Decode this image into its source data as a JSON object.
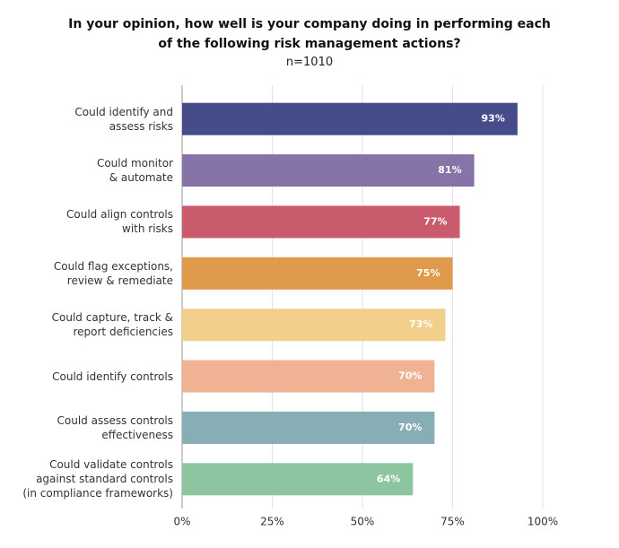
{
  "chart_data": {
    "type": "barh",
    "title": "In your opinion, how well is your company doing in performing each\nof the following risk management actions?",
    "subtitle": "n=1010",
    "categories": [
      "Could identify and\nassess risks",
      "Could monitor\n& automate",
      "Could align controls\nwith risks",
      "Could flag exceptions,\nreview & remediate",
      "Could capture, track &\nreport deficiencies",
      "Could identify controls",
      "Could assess controls\neffectiveness",
      "Could validate controls\nagainst standard controls\n(in compliance frameworks)"
    ],
    "values": [
      93,
      81,
      77,
      75,
      73,
      70,
      70,
      64
    ],
    "value_labels": [
      "93%",
      "81%",
      "77%",
      "75%",
      "73%",
      "70%",
      "70%",
      "64%"
    ],
    "colors": [
      "#464b8a",
      "#8674a8",
      "#c95b6c",
      "#e09a4c",
      "#f2cf8a",
      "#efb393",
      "#88aeb5",
      "#8cc5a0"
    ],
    "xlim": [
      0,
      100
    ],
    "xticks": [
      {
        "value": 0,
        "label": "0%"
      },
      {
        "value": 25,
        "label": "25%"
      },
      {
        "value": 50,
        "label": "50%"
      },
      {
        "value": 75,
        "label": "75%"
      },
      {
        "value": 100,
        "label": "100%"
      }
    ],
    "grid": true
  }
}
